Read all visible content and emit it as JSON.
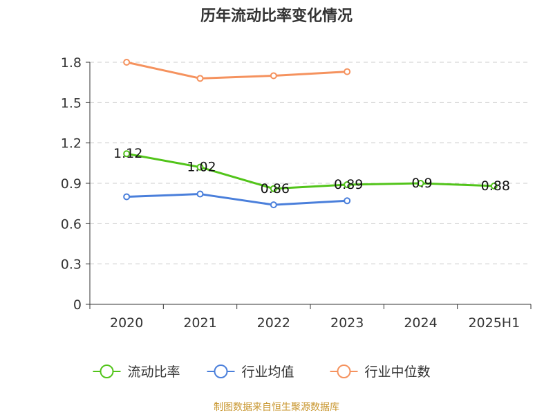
{
  "chart_data": {
    "type": "line",
    "title": "历年流动比率变化情况",
    "categories": [
      "2020",
      "2021",
      "2022",
      "2023",
      "2024",
      "2025H1"
    ],
    "ylim": [
      0,
      1.8
    ],
    "yticks": [
      "0",
      "0.3",
      "0.6",
      "0.9",
      "1.2",
      "1.5",
      "1.8"
    ],
    "ytick_values": [
      0,
      0.3,
      0.6,
      0.9,
      1.2,
      1.5,
      1.8
    ],
    "grid": true,
    "legend_position": "bottom",
    "series": [
      {
        "name": "流动比率",
        "color": "#52c41a",
        "marker": "circle-open",
        "values": [
          1.12,
          1.02,
          0.86,
          0.89,
          0.9,
          0.88
        ],
        "labels": [
          "1.12",
          "1.02",
          "0.86",
          "0.89",
          "0.9",
          "0.88"
        ]
      },
      {
        "name": "行业均值",
        "color": "#4a7fdb",
        "marker": "circle-open",
        "values": [
          0.8,
          0.82,
          0.74,
          0.77,
          null,
          null
        ]
      },
      {
        "name": "行业中位数",
        "color": "#f5925e",
        "marker": "circle-open",
        "values": [
          1.8,
          1.68,
          1.7,
          1.73,
          null,
          null
        ]
      }
    ]
  },
  "source_text": "制图数据来自恒生聚源数据库"
}
